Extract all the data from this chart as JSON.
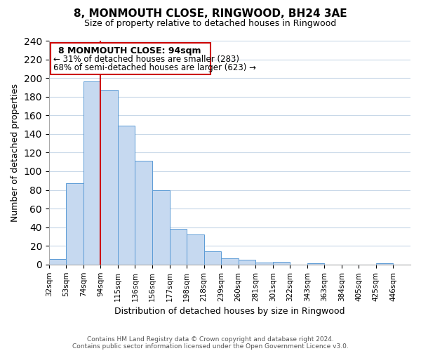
{
  "title": "8, MONMOUTH CLOSE, RINGWOOD, BH24 3AE",
  "subtitle": "Size of property relative to detached houses in Ringwood",
  "xlabel": "Distribution of detached houses by size in Ringwood",
  "ylabel": "Number of detached properties",
  "bin_labels": [
    "32sqm",
    "53sqm",
    "74sqm",
    "94sqm",
    "115sqm",
    "136sqm",
    "156sqm",
    "177sqm",
    "198sqm",
    "218sqm",
    "239sqm",
    "260sqm",
    "281sqm",
    "301sqm",
    "322sqm",
    "343sqm",
    "363sqm",
    "384sqm",
    "405sqm",
    "425sqm",
    "446sqm"
  ],
  "bar_values": [
    6,
    87,
    196,
    187,
    149,
    111,
    80,
    38,
    32,
    14,
    7,
    5,
    2,
    3,
    0,
    1,
    0,
    0,
    0,
    1,
    0
  ],
  "bar_color": "#c6d9f0",
  "bar_edge_color": "#5b9bd5",
  "vline_color": "#cc0000",
  "ylim": [
    0,
    240
  ],
  "yticks": [
    0,
    20,
    40,
    60,
    80,
    100,
    120,
    140,
    160,
    180,
    200,
    220,
    240
  ],
  "annotation_title": "8 MONMOUTH CLOSE: 94sqm",
  "annotation_line1": "← 31% of detached houses are smaller (283)",
  "annotation_line2": "68% of semi-detached houses are larger (623) →",
  "annotation_box_color": "#ffffff",
  "annotation_box_edge": "#cc0000",
  "footer_line1": "Contains HM Land Registry data © Crown copyright and database right 2024.",
  "footer_line2": "Contains public sector information licensed under the Open Government Licence v3.0.",
  "background_color": "#ffffff",
  "grid_color": "#c8d8e8"
}
